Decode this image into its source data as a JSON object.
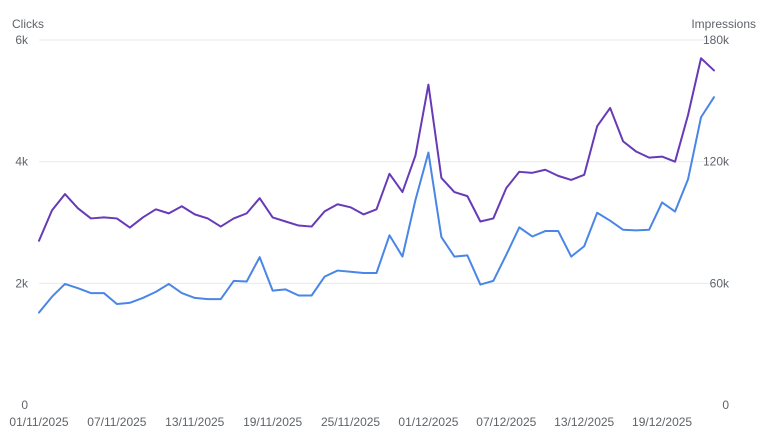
{
  "chart_data": {
    "type": "line",
    "left_axis": {
      "label": "Clicks",
      "ticks": [
        "0",
        "2k",
        "4k",
        "6k"
      ],
      "ylim": [
        0,
        6000
      ]
    },
    "right_axis": {
      "label": "Impressions",
      "ticks": [
        "0",
        "60k",
        "120k",
        "180k"
      ],
      "ylim": [
        0,
        180000
      ]
    },
    "x_tick_labels": [
      "01/11/2025",
      "07/11/2025",
      "13/11/2025",
      "19/11/2025",
      "25/11/2025",
      "01/12/2025",
      "07/12/2025",
      "13/12/2025",
      "19/12/2025"
    ],
    "start_date": "01/11/2025",
    "grid": true,
    "series": [
      {
        "axis": "left",
        "color": "#4a86e8",
        "values": [
          1520,
          1780,
          1990,
          1920,
          1840,
          1840,
          1660,
          1680,
          1760,
          1860,
          1990,
          1840,
          1760,
          1740,
          1740,
          2040,
          2030,
          2430,
          1880,
          1900,
          1800,
          1800,
          2110,
          2210,
          2190,
          2170,
          2170,
          2790,
          2440,
          3370,
          4150,
          2760,
          2440,
          2460,
          1980,
          2040,
          2470,
          2920,
          2770,
          2860,
          2860,
          2440,
          2610,
          3160,
          3030,
          2880,
          2870,
          2880,
          3330,
          3180,
          3710,
          4730,
          5060
        ]
      },
      {
        "axis": "right",
        "color": "#673ab7",
        "values": [
          81000,
          96000,
          104000,
          97000,
          92000,
          92500,
          92000,
          87500,
          92500,
          96500,
          94500,
          98000,
          94000,
          92000,
          88000,
          92000,
          94500,
          102000,
          92500,
          90500,
          88500,
          88000,
          95500,
          99000,
          97500,
          94000,
          96500,
          114000,
          105000,
          123000,
          158000,
          112000,
          105000,
          103000,
          90500,
          92000,
          107000,
          115000,
          114500,
          116000,
          113000,
          111000,
          113500,
          137500,
          146500,
          130000,
          125000,
          122000,
          122500,
          120000,
          143000,
          171000,
          165000
        ]
      }
    ]
  }
}
